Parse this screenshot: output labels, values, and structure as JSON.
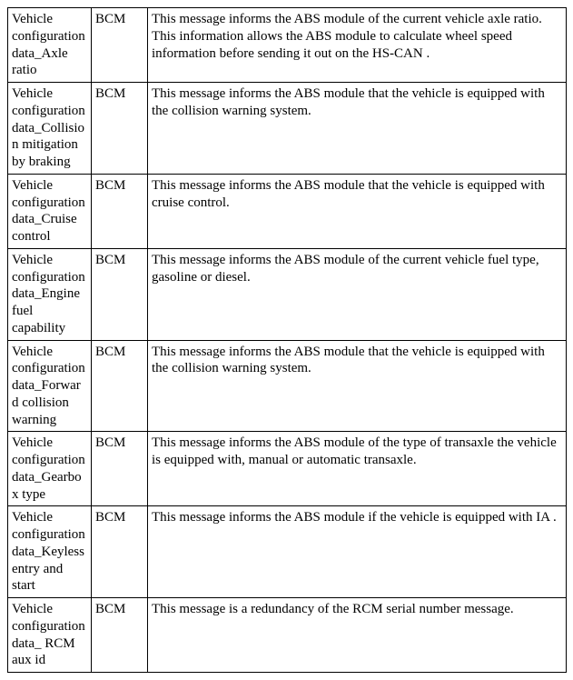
{
  "table": {
    "rows": [
      {
        "name": "Vehicle configuration data_Axle ratio",
        "source": "BCM",
        "desc": "This message informs the ABS module of the current vehicle axle ratio. This information allows the ABS module to calculate wheel speed information before sending it out on the HS-CAN ."
      },
      {
        "name": "Vehicle configuration data_Collision mitigation by braking",
        "source": "BCM",
        "desc": "This message informs the ABS module that the vehicle is equipped with the collision warning system."
      },
      {
        "name": "Vehicle configuration data_Cruise control",
        "source": "BCM",
        "desc": "This message informs the ABS module that the vehicle is equipped with cruise control."
      },
      {
        "name": "Vehicle configuration data_Engine fuel capability",
        "source": "BCM",
        "desc": "This message informs the ABS module of the current vehicle fuel type, gasoline or diesel."
      },
      {
        "name": "Vehicle configuration data_Forward collision warning",
        "source": "BCM",
        "desc": "This message informs the ABS module that the vehicle is equipped with the collision warning system."
      },
      {
        "name": "Vehicle configuration data_Gearbox type",
        "source": "BCM",
        "desc": "This message informs the ABS module of the type of transaxle the vehicle is equipped with, manual or automatic transaxle."
      },
      {
        "name": "Vehicle configuration data_Keyless entry and start",
        "source": "BCM",
        "desc": "This message informs the ABS module if the vehicle is equipped with IA ."
      },
      {
        "name": "Vehicle configuration data_ RCM aux id",
        "source": "BCM",
        "desc": "This message is a redundancy of the RCM serial number message."
      }
    ]
  }
}
